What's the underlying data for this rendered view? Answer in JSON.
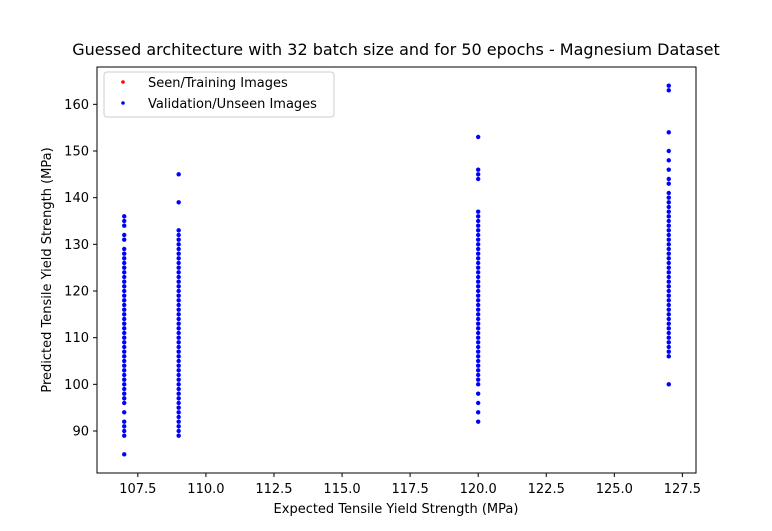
{
  "chart_data": {
    "type": "scatter",
    "title": "Guessed architecture with 32 batch size and for 50 epochs - Magnesium Dataset",
    "xlabel": "Expected Tensile Yield Strength (MPa)",
    "ylabel": "Predicted Tensile Yield Strength (MPa)",
    "xlim": [
      106.0,
      128.0
    ],
    "ylim": [
      81.0,
      168.0
    ],
    "x_ticks": [
      107.5,
      110.0,
      112.5,
      115.0,
      117.5,
      120.0,
      122.5,
      125.0,
      127.5
    ],
    "x_tick_labels": [
      "107.5",
      "110.0",
      "112.5",
      "115.0",
      "117.5",
      "120.0",
      "122.5",
      "125.0",
      "127.5"
    ],
    "y_ticks": [
      90,
      100,
      110,
      120,
      130,
      140,
      150,
      160
    ],
    "y_tick_labels": [
      "90",
      "100",
      "110",
      "120",
      "130",
      "140",
      "150",
      "160"
    ],
    "grid": false,
    "legend_position": "top-left",
    "series": [
      {
        "name": "Seen/Training Images",
        "color": "#ff0000",
        "points": []
      },
      {
        "name": "Validation/Unseen Images",
        "color": "#0000ff",
        "points": [
          [
            107,
            85
          ],
          [
            107,
            89
          ],
          [
            107,
            90
          ],
          [
            107,
            91
          ],
          [
            107,
            92
          ],
          [
            107,
            94
          ],
          [
            107,
            96
          ],
          [
            107,
            97
          ],
          [
            107,
            98
          ],
          [
            107,
            99
          ],
          [
            107,
            100
          ],
          [
            107,
            101
          ],
          [
            107,
            102
          ],
          [
            107,
            103
          ],
          [
            107,
            104
          ],
          [
            107,
            105
          ],
          [
            107,
            106
          ],
          [
            107,
            107
          ],
          [
            107,
            108
          ],
          [
            107,
            109
          ],
          [
            107,
            110
          ],
          [
            107,
            111
          ],
          [
            107,
            112
          ],
          [
            107,
            113
          ],
          [
            107,
            114
          ],
          [
            107,
            115
          ],
          [
            107,
            116
          ],
          [
            107,
            117
          ],
          [
            107,
            118
          ],
          [
            107,
            119
          ],
          [
            107,
            120
          ],
          [
            107,
            121
          ],
          [
            107,
            122
          ],
          [
            107,
            123
          ],
          [
            107,
            124
          ],
          [
            107,
            125
          ],
          [
            107,
            126
          ],
          [
            107,
            127
          ],
          [
            107,
            128
          ],
          [
            107,
            129
          ],
          [
            107,
            131
          ],
          [
            107,
            132
          ],
          [
            107,
            134
          ],
          [
            107,
            135
          ],
          [
            107,
            136
          ],
          [
            109,
            89
          ],
          [
            109,
            90
          ],
          [
            109,
            91
          ],
          [
            109,
            92
          ],
          [
            109,
            93
          ],
          [
            109,
            94
          ],
          [
            109,
            95
          ],
          [
            109,
            96
          ],
          [
            109,
            97
          ],
          [
            109,
            98
          ],
          [
            109,
            99
          ],
          [
            109,
            100
          ],
          [
            109,
            101
          ],
          [
            109,
            102
          ],
          [
            109,
            103
          ],
          [
            109,
            104
          ],
          [
            109,
            105
          ],
          [
            109,
            106
          ],
          [
            109,
            107
          ],
          [
            109,
            108
          ],
          [
            109,
            109
          ],
          [
            109,
            110
          ],
          [
            109,
            111
          ],
          [
            109,
            112
          ],
          [
            109,
            113
          ],
          [
            109,
            114
          ],
          [
            109,
            115
          ],
          [
            109,
            116
          ],
          [
            109,
            117
          ],
          [
            109,
            118
          ],
          [
            109,
            119
          ],
          [
            109,
            120
          ],
          [
            109,
            121
          ],
          [
            109,
            122
          ],
          [
            109,
            123
          ],
          [
            109,
            124
          ],
          [
            109,
            125
          ],
          [
            109,
            126
          ],
          [
            109,
            127
          ],
          [
            109,
            128
          ],
          [
            109,
            129
          ],
          [
            109,
            130
          ],
          [
            109,
            131
          ],
          [
            109,
            132
          ],
          [
            109,
            133
          ],
          [
            109,
            139
          ],
          [
            109,
            145
          ],
          [
            120,
            92
          ],
          [
            120,
            94
          ],
          [
            120,
            96
          ],
          [
            120,
            98
          ],
          [
            120,
            100
          ],
          [
            120,
            101
          ],
          [
            120,
            102
          ],
          [
            120,
            103
          ],
          [
            120,
            104
          ],
          [
            120,
            105
          ],
          [
            120,
            106
          ],
          [
            120,
            107
          ],
          [
            120,
            108
          ],
          [
            120,
            109
          ],
          [
            120,
            110
          ],
          [
            120,
            111
          ],
          [
            120,
            112
          ],
          [
            120,
            113
          ],
          [
            120,
            114
          ],
          [
            120,
            115
          ],
          [
            120,
            116
          ],
          [
            120,
            117
          ],
          [
            120,
            118
          ],
          [
            120,
            119
          ],
          [
            120,
            120
          ],
          [
            120,
            121
          ],
          [
            120,
            122
          ],
          [
            120,
            123
          ],
          [
            120,
            124
          ],
          [
            120,
            125
          ],
          [
            120,
            126
          ],
          [
            120,
            127
          ],
          [
            120,
            128
          ],
          [
            120,
            129
          ],
          [
            120,
            130
          ],
          [
            120,
            131
          ],
          [
            120,
            132
          ],
          [
            120,
            133
          ],
          [
            120,
            134
          ],
          [
            120,
            135
          ],
          [
            120,
            136
          ],
          [
            120,
            137
          ],
          [
            120,
            144
          ],
          [
            120,
            145
          ],
          [
            120,
            146
          ],
          [
            120,
            153
          ],
          [
            127,
            100
          ],
          [
            127,
            106
          ],
          [
            127,
            107
          ],
          [
            127,
            108
          ],
          [
            127,
            109
          ],
          [
            127,
            110
          ],
          [
            127,
            111
          ],
          [
            127,
            112
          ],
          [
            127,
            113
          ],
          [
            127,
            114
          ],
          [
            127,
            115
          ],
          [
            127,
            116
          ],
          [
            127,
            117
          ],
          [
            127,
            118
          ],
          [
            127,
            119
          ],
          [
            127,
            120
          ],
          [
            127,
            121
          ],
          [
            127,
            122
          ],
          [
            127,
            123
          ],
          [
            127,
            124
          ],
          [
            127,
            125
          ],
          [
            127,
            126
          ],
          [
            127,
            127
          ],
          [
            127,
            128
          ],
          [
            127,
            129
          ],
          [
            127,
            130
          ],
          [
            127,
            131
          ],
          [
            127,
            132
          ],
          [
            127,
            133
          ],
          [
            127,
            134
          ],
          [
            127,
            135
          ],
          [
            127,
            136
          ],
          [
            127,
            137
          ],
          [
            127,
            138
          ],
          [
            127,
            139
          ],
          [
            127,
            140
          ],
          [
            127,
            141
          ],
          [
            127,
            143
          ],
          [
            127,
            144
          ],
          [
            127,
            146
          ],
          [
            127,
            148
          ],
          [
            127,
            150
          ],
          [
            127,
            154
          ],
          [
            127,
            163
          ],
          [
            127,
            164
          ]
        ]
      }
    ]
  }
}
